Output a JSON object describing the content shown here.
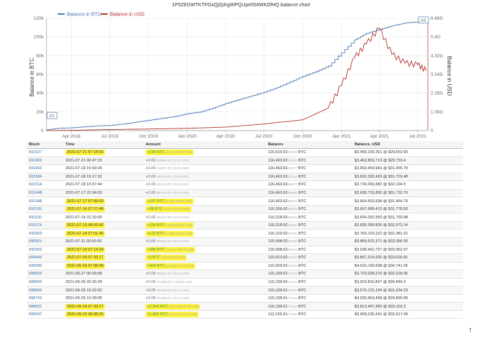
{
  "page": {
    "title": "1P5ZEDWTKTFGxQjZphgWPQUpe554WKDfHQ balance chart"
  },
  "legend": {
    "btc_label": "Balance in BTC",
    "usd_label": "Balance in USD",
    "btc_color": "#4a78b0",
    "usd_color": "#b0302a"
  },
  "axes": {
    "left_label": "Balance in BTC",
    "right_label": "Balance in USD",
    "left_ticks": [
      "120k",
      "100k",
      "80k",
      "60k",
      "40k",
      "20k",
      "0"
    ],
    "right_ticks": [
      "6.48G",
      "5.4G",
      "4.32G",
      "3.24G",
      "2.16G",
      "1.08G",
      "0"
    ],
    "x_ticks": [
      "Apr 2019",
      "Jul 2019",
      "Oct 2019",
      "Jan 2020",
      "Apr 2020",
      "Jul 2020",
      "Oct 2020",
      "Jan 2021",
      "Apr 2021",
      "Jul 2021"
    ],
    "start_marker": "#1",
    "end_marker": "#3"
  },
  "chart_data": {
    "type": "line",
    "title": "1P5ZEDWTKTFGxQjZphgWPQUpe554WKDfHQ balance chart",
    "x_ticks": [
      "Apr 2019",
      "Jul 2019",
      "Oct 2019",
      "Jan 2020",
      "Apr 2020",
      "Jul 2020",
      "Oct 2020",
      "Jan 2021",
      "Apr 2021",
      "Jul 2021"
    ],
    "ylabel": "Balance in BTC",
    "y2label": "Balance in USD",
    "ylim": [
      0,
      120000
    ],
    "y2lim": [
      0,
      6480000000
    ],
    "grid": true,
    "legend_position": "top-left",
    "series": [
      {
        "name": "Balance in BTC",
        "axis": "left",
        "points": [
          [
            "2019-02-01",
            1000
          ],
          [
            "2019-03-01",
            2500
          ],
          [
            "2019-04-01",
            3000
          ],
          [
            "2019-05-01",
            4000
          ],
          [
            "2019-06-01",
            5000
          ],
          [
            "2019-07-01",
            5500
          ],
          [
            "2019-08-01",
            7000
          ],
          [
            "2019-09-01",
            9000
          ],
          [
            "2019-10-01",
            11000
          ],
          [
            "2019-11-01",
            13000
          ],
          [
            "2019-12-01",
            15000
          ],
          [
            "2020-01-01",
            18000
          ],
          [
            "2020-02-01",
            20000
          ],
          [
            "2020-03-01",
            24000
          ],
          [
            "2020-04-01",
            29000
          ],
          [
            "2020-05-01",
            33000
          ],
          [
            "2020-06-01",
            37000
          ],
          [
            "2020-07-01",
            41000
          ],
          [
            "2020-08-01",
            46000
          ],
          [
            "2020-09-01",
            52000
          ],
          [
            "2020-10-01",
            58000
          ],
          [
            "2020-11-01",
            63000
          ],
          [
            "2020-12-01",
            69000
          ],
          [
            "2021-01-01",
            83000
          ],
          [
            "2021-02-01",
            97000
          ],
          [
            "2021-03-01",
            104000
          ],
          [
            "2021-04-01",
            108000
          ],
          [
            "2021-05-01",
            112000
          ],
          [
            "2021-06-01",
            115000
          ],
          [
            "2021-07-01",
            116000
          ],
          [
            "2021-07-21",
            116620
          ]
        ]
      },
      {
        "name": "Balance in USD",
        "axis": "right",
        "points": [
          [
            "2019-02-01",
            4000000
          ],
          [
            "2019-04-01",
            15000000
          ],
          [
            "2019-07-01",
            60000000
          ],
          [
            "2019-10-01",
            90000000
          ],
          [
            "2020-01-01",
            130000000
          ],
          [
            "2020-04-01",
            200000000
          ],
          [
            "2020-07-01",
            380000000
          ],
          [
            "2020-10-01",
            620000000
          ],
          [
            "2020-12-01",
            1300000000
          ],
          [
            "2021-01-01",
            2600000000
          ],
          [
            "2021-02-01",
            4200000000
          ],
          [
            "2021-03-01",
            5000000000
          ],
          [
            "2021-04-01",
            5900000000
          ],
          [
            "2021-05-01",
            4400000000
          ],
          [
            "2021-06-01",
            3900000000
          ],
          [
            "2021-07-01",
            3800000000
          ],
          [
            "2021-07-21",
            3458000000
          ]
        ]
      }
    ]
  },
  "table": {
    "headers": [
      "Block",
      "Time",
      "Amount",
      "Balance",
      "Balance, USD"
    ],
    "rows": [
      {
        "block": "691927",
        "time": "2021-07-21 07:18:56",
        "time_hl": true,
        "amount": "+156 BTC",
        "amount_sub": "(4,624,413.97 USD)",
        "amount_hl": true,
        "balance": "116,619.62",
        "balance_sub": "125843",
        "balance_unit": "BTC",
        "usd": "$3,458,230,361 @ $29,653.93"
      },
      {
        "block": "691900",
        "time": "2021-07-21 00:47:15",
        "time_hl": false,
        "amount": "+0.00",
        "amount_sub": "003868 BTC (1.10 USD)",
        "amount_hl": false,
        "balance": "116,463.62",
        "balance_sub": "125843",
        "balance_unit": "BTC",
        "usd": "$3,462,859,713 @ $29,733.4"
      },
      {
        "block": "691692",
        "time": "2021-07-19 15:59:26",
        "time_hl": false,
        "amount": "+0.00",
        "amount_sub": "018877 BTC (5.92 USD)",
        "amount_hl": false,
        "balance": "116,463.62",
        "balance_sub": "118977",
        "balance_unit": "BTC",
        "usd": "$3,663,454,943 @ $31,455.79"
      },
      {
        "block": "691584",
        "time": "2021-07-18 19:17:32",
        "time_hl": false,
        "amount": "+0.00",
        "amount_sub": "000274 BTC (0.09 USD)",
        "amount_hl": false,
        "balance": "116,463.62",
        "balance_sub": "097214",
        "balance_unit": "BTC",
        "usd": "$3,692,302,433 @ $31,703.48"
      },
      {
        "block": "691514",
        "time": "2021-07-18 10:07:44",
        "time_hl": false,
        "amount": "+0.00",
        "amount_sub": "001222 BTC (0.39 USD)",
        "amount_hl": false,
        "balance": "116,463.62",
        "balance_sub": "096877",
        "balance_unit": "BTC",
        "usd": "$3,739,006,682 @ $32,104.5"
      },
      {
        "block": "691448",
        "time": "2021-07-17 22:34:03",
        "time_hl": false,
        "amount": "+0.00",
        "amount_sub": "000750 BTC (0.02 USD)",
        "amount_hl": false,
        "balance": "116,463.62",
        "balance_sub": "095655",
        "balance_unit": "BTC",
        "usd": "$3,695,715,892 @ $31,732.79"
      },
      {
        "block": "691348",
        "time": "2021-07-17 07:09:50",
        "time_hl": true,
        "amount": "+107 BTC",
        "amount_sub": "(3,366,195.60 USD)",
        "amount_hl": true,
        "balance": "116,463.62",
        "balance_sub": "095375",
        "balance_unit": "BTC",
        "usd": "$3,664,503,938 @ $31,464.79"
      },
      {
        "block": "691199",
        "time": "2021-07-16 07:27:48",
        "time_hl": true,
        "amount": "+38 BTC",
        "amount_sub": "(1,187,306.60 USD)",
        "amount_hl": true,
        "balance": "116,356.62",
        "balance_sub": "095375",
        "balance_unit": "BTC",
        "usd": "$3,697,689,415 @ $31,778.93"
      },
      {
        "block": "691130",
        "time": "2021-07-15 21:19:00",
        "time_hl": false,
        "amount": "+0.00",
        "amount_sub": "001221 BTC (0.39 USD)",
        "amount_hl": false,
        "balance": "116,318.62",
        "balance_sub": "095375",
        "balance_unit": "BTC",
        "usd": "$3,694,392,953 @ $31,760.98"
      },
      {
        "block": "691074",
        "time": "2021-07-15 08:03:42",
        "time_hl": true,
        "amount": "+156 BTC",
        "amount_sub": "(4,928,881.60 USD)",
        "amount_hl": true,
        "balance": "116,318.62",
        "balance_sub": "094155",
        "balance_unit": "BTC",
        "usd": "$3,835,389,835 @ $32,973.14"
      },
      {
        "block": "690903",
        "time": "2021-07-14 07:51:46",
        "time_hl": true,
        "amount": "+122 BTC",
        "amount_sub": "(3,960,463.44 USD)",
        "amount_hl": true,
        "balance": "116,120.62",
        "balance_sub": "094155",
        "balance_unit": "BTC",
        "usd": "$3,760,103,222 @ $32,381.01"
      },
      {
        "block": "690501",
        "time": "2021-07-11 03:50:26",
        "time_hl": false,
        "amount": "+0.00",
        "amount_sub": "000641 BTC (0.22 USD)",
        "amount_hl": false,
        "balance": "115,998.62",
        "balance_sub": "094155",
        "balance_unit": "BTC",
        "usd": "$3,869,522,371 @ $33,358.35"
      },
      {
        "block": "690352",
        "time": "2021-07-10 07:14:33",
        "time_hl": true,
        "amount": "+386 BTC",
        "amount_sub": "(13,101,736.97 USD)",
        "amount_hl": true,
        "balance": "115,998.62",
        "balance_sub": "093514",
        "balance_unit": "BTC",
        "usd": "$3,938,462,727 @ $33,952.67"
      },
      {
        "block": "689445",
        "time": "2021-07-03 07:20:17",
        "time_hl": true,
        "amount": "+9 BTC",
        "amount_sub": "(302,459.58 USD)",
        "amount_hl": true,
        "balance": "115,612.62",
        "balance_sub": "131675",
        "balance_unit": "BTC",
        "usd": "$3,867,914,925 @ $33,626.81"
      },
      {
        "block": "689080",
        "time": "2021-06-29 07:08:48",
        "time_hl": true,
        "amount": "+404 BTC",
        "amount_sub": "(14,039,261.40 USD)",
        "amount_hl": true,
        "balance": "115,603.62",
        "balance_sub": "131675",
        "balance_unit": "BTC",
        "usd": "$4,016,190,698 @ $34,741.05"
      },
      {
        "block": "688926",
        "time": "2021-06-27 06:09:58",
        "time_hl": false,
        "amount": "+0.00",
        "amount_sub": "000941 BTC (0.24 USD)",
        "amount_hl": false,
        "balance": "115,199.62",
        "balance_sub": "131675",
        "balance_unit": "BTC",
        "usd": "$3,723,028,215 @ $32,318.06"
      },
      {
        "block": "688895",
        "time": "2021-06-26 20:33:28",
        "time_hl": false,
        "amount": "+0.00",
        "amount_sub": "022800 BTC (752.58 USD)",
        "amount_hl": false,
        "balance": "115,199.62",
        "balance_sub": "124733",
        "balance_unit": "BTC",
        "usd": "$3,553,815,837 @ $30,849.2"
      },
      {
        "block": "688866",
        "time": "2021-06-26 16:22:02",
        "time_hl": false,
        "amount": "+0.00",
        "amount_sub": "000548 BTC (0.17 USD)",
        "amount_hl": false,
        "balance": "115,199.61",
        "balance_sub": "701935",
        "balance_unit": "BTC",
        "usd": "$3,575,131,104 @ $31,034.23"
      },
      {
        "block": "688753",
        "time": "2021-06-25 10:18:05",
        "time_hl": false,
        "amount": "+0.00",
        "amount_sub": "001060 BTC (0.33 USD)",
        "amount_hl": false,
        "balance": "115,199.61",
        "balance_sub": "771619",
        "balance_unit": "BTC",
        "usd": "$4,020,453,468 @ $34,899.89"
      },
      {
        "block": "688631",
        "time": "2021-06-24 07:43:27",
        "time_hl": true,
        "amount": "+3,044 BTC",
        "amount_sub": "(102,789,447.38 USD)",
        "amount_hl": true,
        "balance": "115,199.61",
        "balance_sub": "771619",
        "balance_unit": "BTC",
        "usd": "$3,813,487,360 @ $33,103.3"
      },
      {
        "block": "688437",
        "time": "2021-06-22 08:08:25",
        "time_hl": true,
        "amount": "+1,062 BTC",
        "amount_sub": "(34,618,719.76 USD)",
        "amount_hl": true,
        "balance": "112,155.61",
        "balance_sub": "771619",
        "balance_unit": "BTC",
        "usd": "$3,658,235,241 @ $32,617.49"
      }
    ]
  },
  "scroll_arrow": "↑"
}
